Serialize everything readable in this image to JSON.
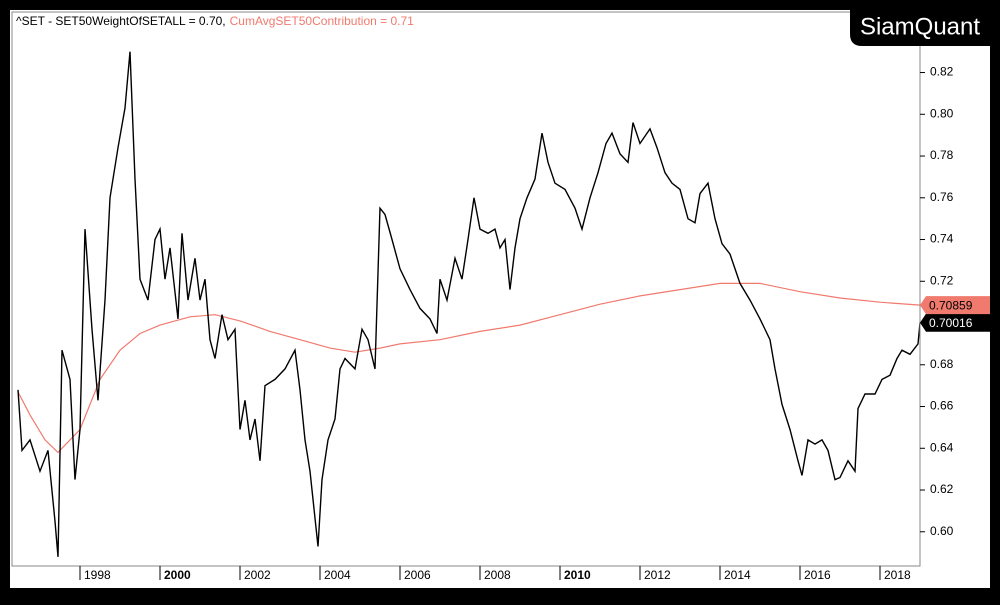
{
  "chart_data": {
    "type": "line",
    "watermark": "SiamQuant",
    "xlim": [
      1996.3,
      2019.0
    ],
    "ylim": [
      0.5836,
      0.849
    ],
    "xticks": [
      1998,
      2000,
      2002,
      2004,
      2006,
      2008,
      2010,
      2012,
      2014,
      2016,
      2018
    ],
    "emphasized_xticks": [
      2000,
      2010
    ],
    "yticks": [
      {
        "value": 0.6,
        "label": "0.60"
      },
      0.62,
      0.64,
      0.66,
      0.68,
      {
        "value": 0.7,
        "label": "0.70"
      },
      0.72,
      0.74,
      0.76,
      0.78,
      {
        "value": 0.8,
        "label": "0.80"
      },
      0.82
    ],
    "grid": false,
    "series": [
      {
        "name": "^SET - SET50WeightOfSETALL = 0.70,",
        "color": "#000000",
        "x": [
          1996.45,
          1996.55,
          1996.75,
          1997.0,
          1997.2,
          1997.375,
          1997.45,
          1997.55,
          1997.75,
          1997.875,
          1998,
          1998.125,
          1998.3,
          1998.45,
          1998.625,
          1998.75,
          1998.95,
          1999.125,
          1999.25,
          1999.375,
          1999.5,
          1999.7,
          1999.875,
          2000,
          2000.125,
          2000.25,
          2000.45,
          2000.55,
          2000.7,
          2000.875,
          2001,
          2001.125,
          2001.25,
          2001.375,
          2001.55,
          2001.7,
          2001.875,
          2002,
          2002.125,
          2002.25,
          2002.375,
          2002.5,
          2002.625,
          2002.875,
          2003.125,
          2003.375,
          2003.5,
          2003.625,
          2003.75,
          2003.95,
          2004.05,
          2004.2,
          2004.375,
          2004.5,
          2004.625,
          2004.875,
          2005.05,
          2005.2,
          2005.375,
          2005.5,
          2005.625,
          2005.8,
          2006,
          2006.25,
          2006.5,
          2006.75,
          2006.925,
          2007,
          2007.175,
          2007.375,
          2007.55,
          2007.7,
          2007.85,
          2008,
          2008.2,
          2008.375,
          2008.5,
          2008.625,
          2008.75,
          2008.875,
          2009,
          2009.175,
          2009.375,
          2009.55,
          2009.7,
          2009.875,
          2010.125,
          2010.375,
          2010.55,
          2010.75,
          2010.95,
          2011.15,
          2011.3,
          2011.5,
          2011.7,
          2011.825,
          2012,
          2012.25,
          2012.425,
          2012.625,
          2012.8,
          2013,
          2013.2,
          2013.375,
          2013.5,
          2013.7,
          2013.875,
          2014.05,
          2014.25,
          2014.5,
          2014.75,
          2015,
          2015.25,
          2015.375,
          2015.55,
          2015.75,
          2015.95,
          2016.05,
          2016.2,
          2016.375,
          2016.55,
          2016.7,
          2016.875,
          2017,
          2017.2,
          2017.375,
          2017.45,
          2017.625,
          2017.875,
          2018.05,
          2018.25,
          2018.425,
          2018.55,
          2018.75,
          2018.95,
          2019.0
        ],
        "values": [
          0.668,
          0.639,
          0.644,
          0.629,
          0.639,
          0.605,
          0.588,
          0.687,
          0.673,
          0.625,
          0.649,
          0.745,
          0.697,
          0.663,
          0.711,
          0.76,
          0.784,
          0.803,
          0.83,
          0.769,
          0.721,
          0.711,
          0.74,
          0.745,
          0.721,
          0.736,
          0.702,
          0.743,
          0.711,
          0.731,
          0.711,
          0.721,
          0.692,
          0.683,
          0.704,
          0.692,
          0.697,
          0.649,
          0.663,
          0.644,
          0.654,
          0.634,
          0.67,
          0.673,
          0.678,
          0.687,
          0.668,
          0.644,
          0.629,
          0.593,
          0.625,
          0.644,
          0.654,
          0.678,
          0.683,
          0.678,
          0.697,
          0.692,
          0.678,
          0.755,
          0.752,
          0.74,
          0.726,
          0.716,
          0.707,
          0.702,
          0.695,
          0.721,
          0.711,
          0.731,
          0.721,
          0.74,
          0.76,
          0.745,
          0.743,
          0.745,
          0.736,
          0.74,
          0.716,
          0.736,
          0.75,
          0.76,
          0.769,
          0.791,
          0.777,
          0.767,
          0.764,
          0.755,
          0.745,
          0.76,
          0.772,
          0.786,
          0.791,
          0.781,
          0.777,
          0.796,
          0.786,
          0.793,
          0.784,
          0.772,
          0.767,
          0.764,
          0.75,
          0.748,
          0.762,
          0.767,
          0.75,
          0.738,
          0.733,
          0.719,
          0.711,
          0.702,
          0.692,
          0.678,
          0.661,
          0.649,
          0.634,
          0.627,
          0.644,
          0.642,
          0.644,
          0.639,
          0.625,
          0.626,
          0.634,
          0.629,
          0.659,
          0.666,
          0.666,
          0.673,
          0.675,
          0.683,
          0.687,
          0.685,
          0.69,
          0.70016
        ]
      },
      {
        "name": "CumAvgSET50Contribution = 0.71",
        "color": "#f07a6e",
        "x": [
          1996.45,
          1996.75,
          1997.125,
          1997.45,
          1997.75,
          1998,
          1998.5,
          1999,
          1999.5,
          2000,
          2000.75,
          2001.375,
          2002,
          2002.75,
          2003.5,
          2004.25,
          2004.875,
          2005.5,
          2006,
          2007,
          2008,
          2009,
          2010,
          2011,
          2012,
          2013,
          2014,
          2015,
          2016,
          2017,
          2018,
          2019.0
        ],
        "values": [
          0.667,
          0.656,
          0.644,
          0.638,
          0.644,
          0.649,
          0.673,
          0.687,
          0.695,
          0.699,
          0.703,
          0.704,
          0.701,
          0.696,
          0.692,
          0.688,
          0.686,
          0.688,
          0.69,
          0.692,
          0.696,
          0.699,
          0.704,
          0.709,
          0.713,
          0.716,
          0.719,
          0.719,
          0.715,
          0.712,
          0.71,
          0.70859
        ]
      }
    ]
  }
}
